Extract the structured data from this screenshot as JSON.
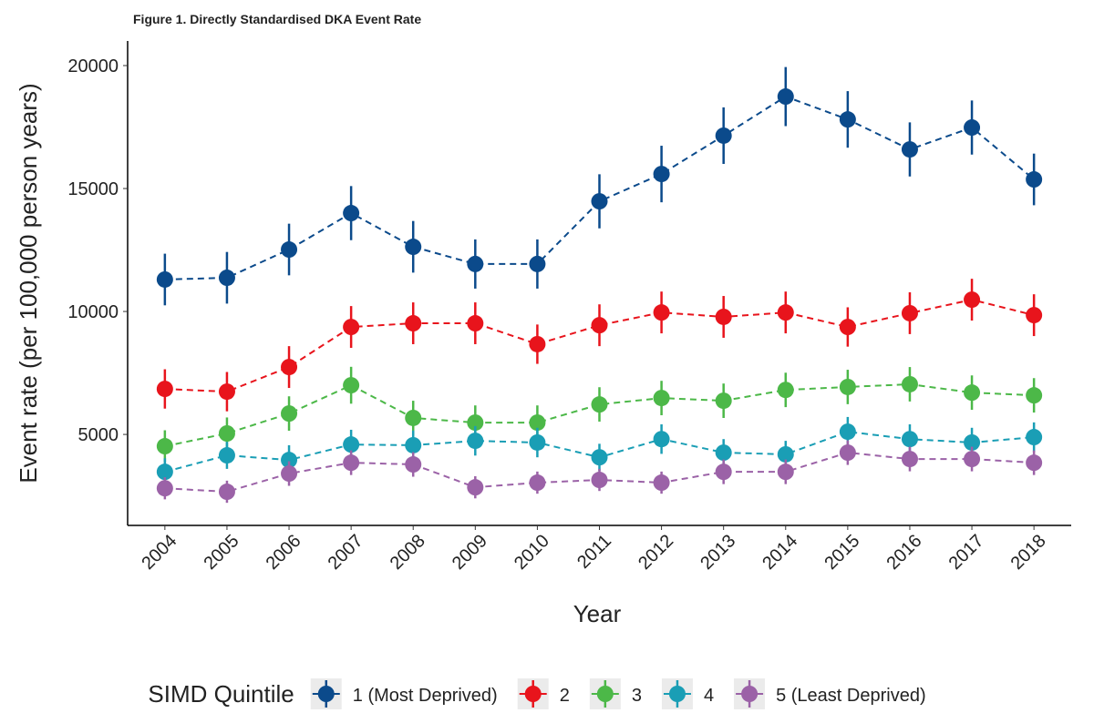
{
  "chart_data": {
    "type": "line-errorbar",
    "title": "Figure 1. Directly Standardised DKA Event Rate",
    "x_label": "Year",
    "y_label": "Event rate (per 100,000 person years)",
    "legend_title": "SIMD Quintile",
    "legend_position": "bottom",
    "categories": [
      "2004",
      "2005",
      "2006",
      "2007",
      "2008",
      "2009",
      "2010",
      "2011",
      "2012",
      "2013",
      "2014",
      "2015",
      "2016",
      "2017",
      "2018"
    ],
    "ylim": [
      1300,
      21000
    ],
    "yticks": [
      5000,
      10000,
      15000,
      20000
    ],
    "grid": false,
    "series": [
      {
        "name": "1 (Most Deprived)",
        "color": "#0b4a8b",
        "values": [
          11300,
          11370,
          12520,
          14000,
          12630,
          11930,
          11930,
          14480,
          15590,
          17150,
          18740,
          17810,
          16590,
          17480,
          15370
        ],
        "errors": [
          1050,
          1050,
          1050,
          1100,
          1050,
          1000,
          1000,
          1100,
          1150,
          1150,
          1200,
          1150,
          1100,
          1100,
          1050
        ]
      },
      {
        "name": "2",
        "color": "#e8141c",
        "values": [
          6850,
          6740,
          7740,
          9370,
          9520,
          9520,
          8670,
          9440,
          9960,
          9780,
          9960,
          9370,
          9930,
          10480,
          9850
        ],
        "errors": [
          800,
          800,
          850,
          850,
          850,
          850,
          800,
          850,
          850,
          850,
          850,
          800,
          850,
          850,
          850
        ]
      },
      {
        "name": "3",
        "color": "#4cb848",
        "values": [
          4520,
          5040,
          5850,
          7000,
          5670,
          5480,
          5480,
          6220,
          6480,
          6370,
          6810,
          6930,
          7040,
          6700,
          6590
        ],
        "errors": [
          650,
          650,
          700,
          750,
          700,
          700,
          700,
          700,
          700,
          700,
          700,
          700,
          700,
          700,
          700
        ]
      },
      {
        "name": "4",
        "color": "#1a9eb5",
        "values": [
          3480,
          4150,
          3960,
          4590,
          4560,
          4740,
          4670,
          4070,
          4810,
          4260,
          4190,
          5110,
          4810,
          4670,
          4890
        ],
        "errors": [
          550,
          550,
          600,
          600,
          600,
          600,
          600,
          550,
          600,
          550,
          550,
          600,
          600,
          600,
          600
        ]
      },
      {
        "name": "5 (Least Deprived)",
        "color": "#9b62a7",
        "values": [
          2810,
          2670,
          3410,
          3850,
          3780,
          2850,
          3040,
          3150,
          3040,
          3480,
          3480,
          4260,
          4000,
          4000,
          3850
        ],
        "errors": [
          450,
          450,
          500,
          500,
          500,
          450,
          450,
          450,
          450,
          500,
          500,
          500,
          500,
          500,
          500
        ]
      }
    ]
  }
}
